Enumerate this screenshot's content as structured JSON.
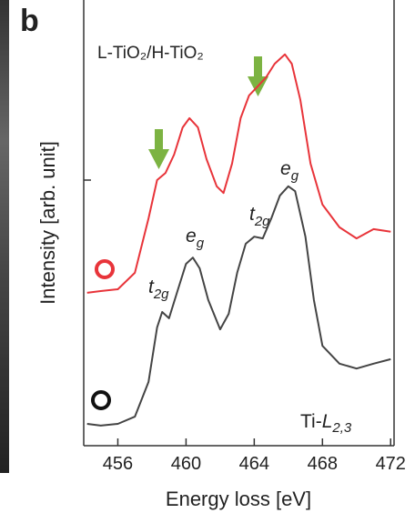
{
  "chart_data": {
    "type": "line",
    "panel_label": "b",
    "title": "L-TiO₂/H-TiO₂",
    "x_label": "Energy loss [eV]",
    "y_label": "Intensity [arb. unit]",
    "edge_label": {
      "base": "Ti-",
      "italic": "L",
      "sub": "2,3"
    },
    "annotations": [
      {
        "base": "t",
        "sub": "2g"
      },
      {
        "base": "e",
        "sub": "g"
      },
      {
        "base": "t",
        "sub": "2g"
      },
      {
        "base": "e",
        "sub": "g"
      }
    ],
    "xlim": [
      454,
      472.2
    ],
    "ylim": [
      0,
      1
    ],
    "xticks": [
      456,
      460,
      464,
      468,
      472
    ],
    "series": [
      {
        "color": "#e8343a",
        "x": [
          454.2,
          455,
          456,
          457,
          457.8,
          458.3,
          458.8,
          459.3,
          459.8,
          460.2,
          460.7,
          461.2,
          461.8,
          462.2,
          462.7,
          463.2,
          463.7,
          464.2,
          464.7,
          465.2,
          465.8,
          466.2,
          466.7,
          467.3,
          468,
          469,
          470,
          471,
          472
        ],
        "values": [
          0.343,
          0.347,
          0.351,
          0.388,
          0.51,
          0.596,
          0.612,
          0.653,
          0.714,
          0.735,
          0.714,
          0.643,
          0.582,
          0.567,
          0.633,
          0.735,
          0.786,
          0.806,
          0.827,
          0.857,
          0.878,
          0.857,
          0.776,
          0.633,
          0.541,
          0.49,
          0.465,
          0.486,
          0.48
        ]
      },
      {
        "color": "#444444",
        "x": [
          454.2,
          455,
          456,
          457,
          457.8,
          458.3,
          458.6,
          459,
          459.5,
          460,
          460.4,
          460.8,
          461.3,
          462,
          462.5,
          463,
          463.5,
          464,
          464.5,
          465,
          465.5,
          466,
          466.4,
          467,
          467.5,
          468,
          469,
          470,
          471,
          472
        ],
        "values": [
          0.049,
          0.045,
          0.049,
          0.065,
          0.143,
          0.265,
          0.3,
          0.286,
          0.347,
          0.408,
          0.422,
          0.398,
          0.327,
          0.261,
          0.296,
          0.388,
          0.453,
          0.469,
          0.465,
          0.51,
          0.561,
          0.582,
          0.571,
          0.469,
          0.327,
          0.224,
          0.184,
          0.173,
          0.184,
          0.194
        ]
      }
    ]
  }
}
